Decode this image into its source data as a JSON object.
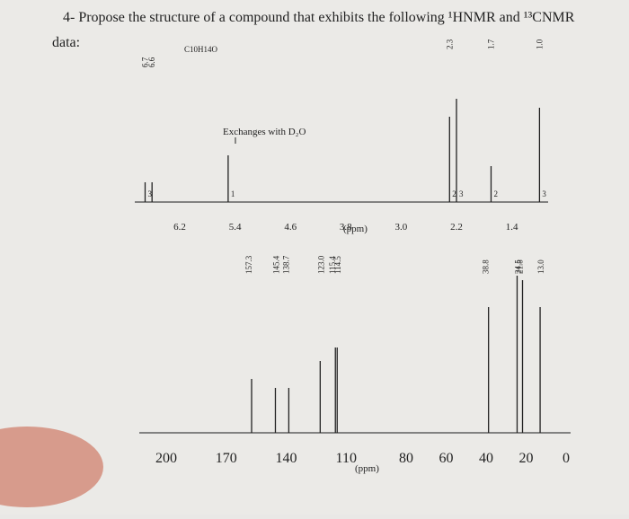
{
  "question": "4- Propose the structure of a compound that exhibits the following ¹HNMR and ¹³CNMR",
  "data_label": "data:",
  "hnmr": {
    "formula": "C10H14O",
    "annotation": "Exchanges with D₂O",
    "axis_unit": "(ppm)",
    "ticks": [
      "6.2",
      "5.4",
      "4.6",
      "3.8",
      "3.0",
      "2.2",
      "1.4"
    ],
    "peaks": [
      {
        "shift": 6.7,
        "label": "6.7",
        "integration": "3"
      },
      {
        "shift": 6.6,
        "label": "6.6"
      },
      {
        "shift": 5.5,
        "integration": "1"
      },
      {
        "shift": 2.3,
        "label": "2.3",
        "integration": "2"
      },
      {
        "shift": 2.2,
        "integration": "3"
      },
      {
        "shift": 1.7,
        "label": "1.7",
        "integration": "2"
      },
      {
        "shift": 1.0,
        "label": "1.0",
        "integration": "3"
      }
    ]
  },
  "cnmr": {
    "axis_unit": "(ppm)",
    "ticks": [
      "200",
      "170",
      "140",
      "110",
      "80",
      "60",
      "40",
      "20",
      "0"
    ],
    "peaks": [
      "157.3",
      "145.4",
      "138.7",
      "123.0",
      "115.4",
      "114.5",
      "38.8",
      "24.5",
      "21.8",
      "13.0"
    ]
  }
}
